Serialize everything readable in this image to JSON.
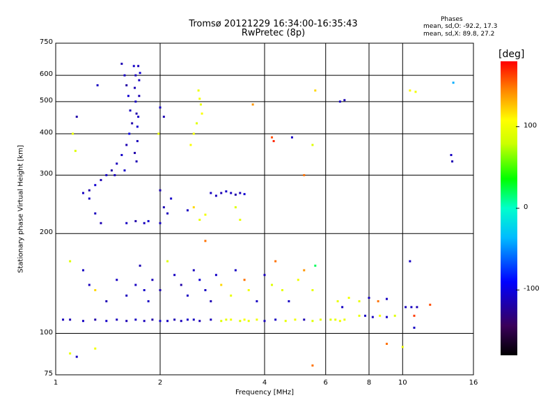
{
  "chart_data": {
    "type": "scatter",
    "title": "Tromsø 20121229 16:34:00-16:35:43",
    "subtitle": "RwPretec (8p)",
    "stats": {
      "heading": "Phases",
      "o_line": "mean, sd,O: -92.2, 17.3",
      "x_line": "mean, sd,X:  89.8, 27.2"
    },
    "xlabel": "Frequency [MHz]",
    "ylabel": "Stationary phase Virtual Height [km]",
    "x_scale": "log",
    "y_scale": "log",
    "xlim": [
      1,
      16
    ],
    "ylim": [
      75,
      750
    ],
    "x_ticks": [
      1,
      2,
      4,
      6,
      8,
      10,
      16
    ],
    "x_tick_labels": [
      "1",
      "2",
      "4",
      "6",
      "8",
      "10",
      "16"
    ],
    "y_ticks": [
      75,
      100,
      200,
      300,
      400,
      500,
      600,
      750
    ],
    "y_tick_labels": [
      "75",
      "100",
      "200",
      "300",
      "400",
      "500",
      "600",
      "750"
    ],
    "grid": true,
    "colorbar": {
      "label": "[deg]",
      "range": [
        -180,
        180
      ],
      "ticks": [
        100,
        0,
        -100
      ],
      "tick_labels": [
        "100",
        "0",
        "-100"
      ]
    },
    "points": [
      [
        1.55,
        650,
        -115
      ],
      [
        1.58,
        600,
        -110
      ],
      [
        1.6,
        560,
        -120
      ],
      [
        1.62,
        520,
        -105
      ],
      [
        1.64,
        470,
        -112
      ],
      [
        1.66,
        430,
        -118
      ],
      [
        1.63,
        400,
        -100
      ],
      [
        1.6,
        370,
        -115
      ],
      [
        1.55,
        345,
        -108
      ],
      [
        1.5,
        325,
        -112
      ],
      [
        1.45,
        310,
        -120
      ],
      [
        1.4,
        300,
        -110
      ],
      [
        1.35,
        290,
        -115
      ],
      [
        1.3,
        280,
        -105
      ],
      [
        1.25,
        270,
        -118
      ],
      [
        1.2,
        265,
        -110
      ],
      [
        1.68,
        640,
        -108
      ],
      [
        1.7,
        600,
        -112
      ],
      [
        1.69,
        550,
        -115
      ],
      [
        1.7,
        500,
        -110
      ],
      [
        1.71,
        460,
        -118
      ],
      [
        1.72,
        420,
        -105
      ],
      [
        1.73,
        640,
        -112
      ],
      [
        1.74,
        580,
        -110
      ],
      [
        1.74,
        520,
        -115
      ],
      [
        1.73,
        450,
        -108
      ],
      [
        1.72,
        380,
        -112
      ],
      [
        1.69,
        350,
        -118
      ],
      [
        1.75,
        610,
        -105
      ],
      [
        1.71,
        330,
        -115
      ],
      [
        1.58,
        310,
        -108
      ],
      [
        1.48,
        300,
        -112
      ],
      [
        1.32,
        560,
        -110
      ],
      [
        1.15,
        450,
        -118
      ],
      [
        1.12,
        400,
        95
      ],
      [
        1.14,
        355,
        90
      ],
      [
        2.0,
        480,
        -110
      ],
      [
        2.05,
        450,
        -115
      ],
      [
        1.98,
        400,
        95
      ],
      [
        2.6,
        510,
        100
      ],
      [
        2.62,
        490,
        95
      ],
      [
        2.64,
        460,
        105
      ],
      [
        2.55,
        430,
        90
      ],
      [
        2.5,
        400,
        100
      ],
      [
        2.45,
        370,
        105
      ],
      [
        2.58,
        540,
        98
      ],
      [
        3.7,
        490,
        140
      ],
      [
        4.2,
        390,
        160
      ],
      [
        4.25,
        380,
        170
      ],
      [
        4.8,
        390,
        -110
      ],
      [
        5.2,
        300,
        150
      ],
      [
        5.6,
        540,
        120
      ],
      [
        5.5,
        370,
        90
      ],
      [
        6.6,
        500,
        -110
      ],
      [
        6.8,
        505,
        -115
      ],
      [
        10.5,
        540,
        110
      ],
      [
        10.9,
        535,
        100
      ],
      [
        14.0,
        570,
        -40
      ],
      [
        13.8,
        345,
        -110
      ],
      [
        13.9,
        330,
        -115
      ],
      [
        1.25,
        255,
        -110
      ],
      [
        1.3,
        230,
        -112
      ],
      [
        1.35,
        215,
        -115
      ],
      [
        1.6,
        215,
        -110
      ],
      [
        1.7,
        218,
        -118
      ],
      [
        1.8,
        215,
        -112
      ],
      [
        1.85,
        218,
        -105
      ],
      [
        2.0,
        215,
        -110
      ],
      [
        2.05,
        240,
        -115
      ],
      [
        2.1,
        230,
        -112
      ],
      [
        2.15,
        255,
        -108
      ],
      [
        2.0,
        270,
        -115
      ],
      [
        2.4,
        235,
        -110
      ],
      [
        2.5,
        240,
        120
      ],
      [
        2.6,
        220,
        95
      ],
      [
        2.7,
        228,
        100
      ],
      [
        2.8,
        265,
        -110
      ],
      [
        2.9,
        260,
        -112
      ],
      [
        3.0,
        265,
        -115
      ],
      [
        3.1,
        268,
        -108
      ],
      [
        3.2,
        265,
        -110
      ],
      [
        3.3,
        262,
        -118
      ],
      [
        3.4,
        265,
        -112
      ],
      [
        3.5,
        263,
        -105
      ],
      [
        3.3,
        240,
        90
      ],
      [
        3.4,
        220,
        95
      ],
      [
        1.05,
        110,
        -112
      ],
      [
        1.1,
        110,
        -115
      ],
      [
        1.2,
        109,
        -110
      ],
      [
        1.3,
        110,
        -118
      ],
      [
        1.4,
        109,
        -108
      ],
      [
        1.5,
        110,
        -112
      ],
      [
        1.6,
        109,
        -115
      ],
      [
        1.7,
        110,
        -110
      ],
      [
        1.8,
        109,
        -112
      ],
      [
        1.9,
        110,
        -118
      ],
      [
        2.0,
        109,
        -105
      ],
      [
        2.1,
        109,
        -110
      ],
      [
        2.2,
        110,
        -115
      ],
      [
        2.3,
        109,
        -112
      ],
      [
        2.4,
        110,
        -108
      ],
      [
        2.5,
        110,
        -110
      ],
      [
        2.6,
        109,
        -115
      ],
      [
        2.8,
        110,
        -112
      ],
      [
        3.0,
        109,
        90
      ],
      [
        3.1,
        110,
        95
      ],
      [
        3.2,
        110,
        100
      ],
      [
        3.4,
        109,
        90
      ],
      [
        3.5,
        110,
        105
      ],
      [
        3.6,
        109,
        95
      ],
      [
        3.8,
        110,
        100
      ],
      [
        4.0,
        109,
        -112
      ],
      [
        4.3,
        110,
        -110
      ],
      [
        4.6,
        109,
        95
      ],
      [
        4.9,
        110,
        100
      ],
      [
        5.2,
        110,
        -115
      ],
      [
        5.5,
        109,
        90
      ],
      [
        5.8,
        110,
        95
      ],
      [
        6.2,
        110,
        90
      ],
      [
        6.4,
        110,
        95
      ],
      [
        6.6,
        109,
        100
      ],
      [
        6.8,
        110,
        98
      ],
      [
        7.5,
        113,
        95
      ],
      [
        7.8,
        113,
        -110
      ],
      [
        8.2,
        112,
        -112
      ],
      [
        8.6,
        113,
        100
      ],
      [
        9.0,
        112,
        -108
      ],
      [
        9.5,
        113,
        90
      ],
      [
        10.2,
        120,
        -112
      ],
      [
        10.6,
        120,
        -110
      ],
      [
        11.0,
        120,
        -115
      ],
      [
        10.8,
        113,
        165
      ],
      [
        1.2,
        155,
        -110
      ],
      [
        1.25,
        140,
        -112
      ],
      [
        1.3,
        135,
        120
      ],
      [
        1.4,
        125,
        -115
      ],
      [
        1.5,
        145,
        -110
      ],
      [
        1.6,
        130,
        -112
      ],
      [
        1.7,
        140,
        -110
      ],
      [
        1.75,
        160,
        -115
      ],
      [
        1.8,
        135,
        -108
      ],
      [
        1.85,
        125,
        -110
      ],
      [
        1.9,
        145,
        -112
      ],
      [
        2.0,
        135,
        -115
      ],
      [
        2.1,
        165,
        90
      ],
      [
        2.2,
        150,
        -110
      ],
      [
        2.3,
        140,
        -118
      ],
      [
        2.4,
        130,
        -110
      ],
      [
        2.5,
        155,
        -112
      ],
      [
        2.6,
        145,
        -105
      ],
      [
        2.7,
        135,
        -110
      ],
      [
        2.8,
        125,
        -115
      ],
      [
        2.9,
        150,
        -108
      ],
      [
        3.0,
        140,
        120
      ],
      [
        3.2,
        130,
        95
      ],
      [
        3.3,
        155,
        -110
      ],
      [
        3.5,
        145,
        150
      ],
      [
        3.6,
        135,
        100
      ],
      [
        3.8,
        125,
        -110
      ],
      [
        4.0,
        150,
        -112
      ],
      [
        4.2,
        140,
        90
      ],
      [
        4.3,
        165,
        150
      ],
      [
        4.5,
        135,
        95
      ],
      [
        4.7,
        125,
        -110
      ],
      [
        5.0,
        145,
        100
      ],
      [
        5.2,
        155,
        140
      ],
      [
        5.5,
        135,
        95
      ],
      [
        5.6,
        160,
        20
      ],
      [
        6.5,
        125,
        95
      ],
      [
        6.7,
        120,
        -110
      ],
      [
        7.0,
        128,
        100
      ],
      [
        7.5,
        125,
        95
      ],
      [
        8.0,
        128,
        -112
      ],
      [
        8.5,
        125,
        150
      ],
      [
        9.0,
        127,
        -110
      ],
      [
        1.1,
        165,
        90
      ],
      [
        1.1,
        87,
        95
      ],
      [
        1.15,
        85,
        -110
      ],
      [
        1.3,
        90,
        100
      ],
      [
        2.7,
        190,
        150
      ],
      [
        10.5,
        165,
        -110
      ],
      [
        5.5,
        80,
        150
      ],
      [
        9.0,
        93,
        150
      ],
      [
        10.0,
        91,
        100
      ],
      [
        12.0,
        122,
        160
      ],
      [
        10.8,
        104,
        -110
      ]
    ]
  }
}
